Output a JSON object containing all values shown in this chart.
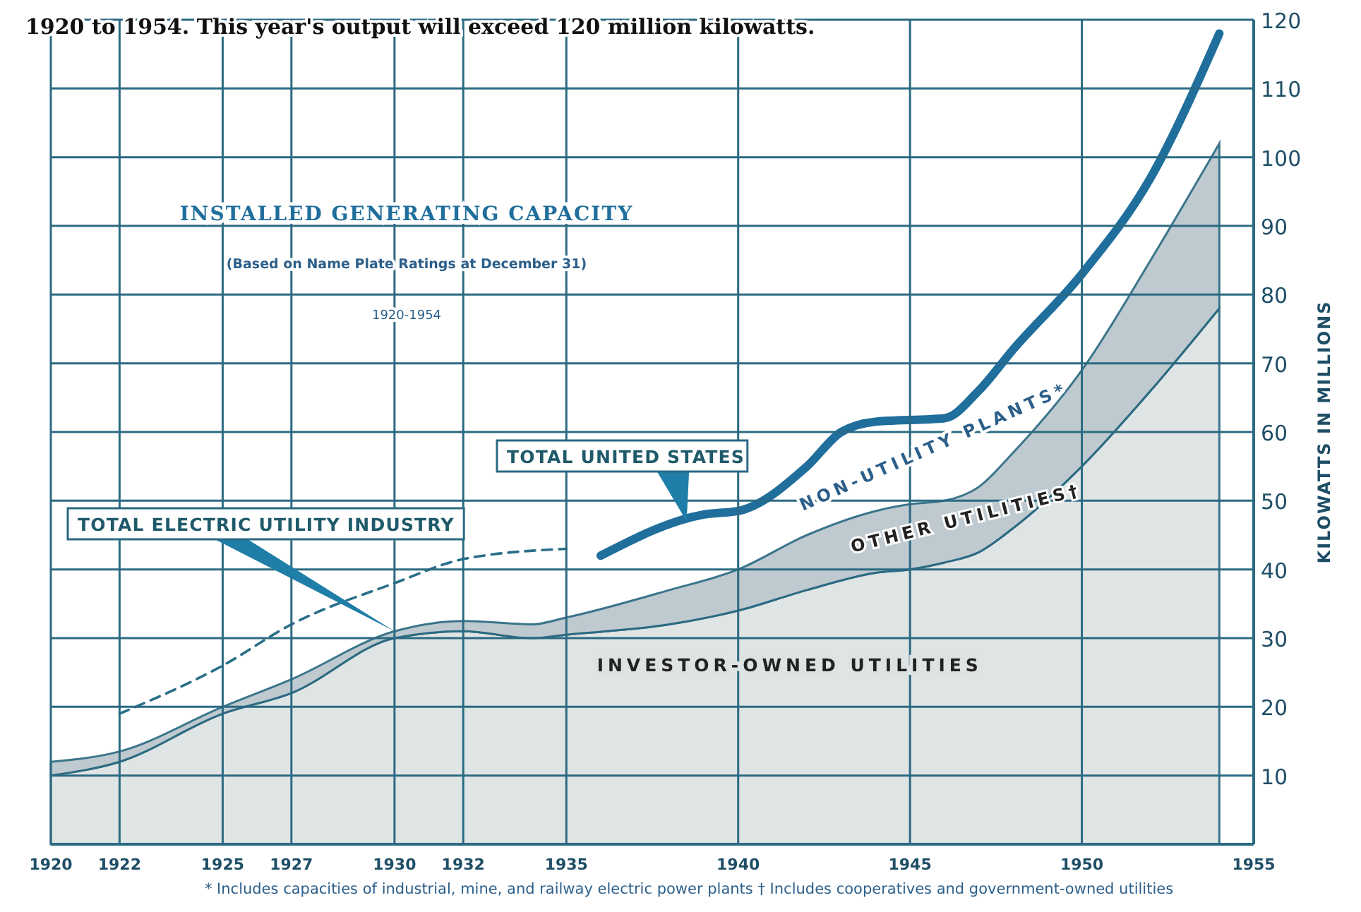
{
  "chart_data": {
    "type": "area",
    "stacked": true,
    "title": "INSTALLED GENERATING CAPACITY",
    "subtitle": "(Based on Name Plate Ratings at December 31)",
    "ylabel": "KILOWATTS IN MILLIONS",
    "x": [
      1920,
      1922,
      1925,
      1927,
      1930,
      1932,
      1934,
      1935,
      1938,
      1940,
      1942,
      1944,
      1945,
      1946,
      1947,
      1948,
      1950,
      1952,
      1954
    ],
    "series": [
      {
        "name": "INVESTOR-OWNED UTILITIES",
        "color": "#dde2e2",
        "values": [
          10,
          12,
          19,
          22,
          30,
          31,
          30,
          30.5,
          32,
          34,
          37,
          39.5,
          40,
          41,
          42.5,
          46,
          55,
          66,
          78
        ]
      },
      {
        "name": "OTHER UTILITIES†",
        "color": "#b9c6cc",
        "values": [
          2,
          1.5,
          1,
          2,
          1,
          1.5,
          2,
          2.5,
          5,
          6,
          8,
          9,
          9.5,
          9,
          9.5,
          11,
          14,
          19,
          24
        ]
      },
      {
        "type": "line",
        "line_style": "dashed",
        "color": "#2a6f8a",
        "x": [
          1922,
          1925,
          1927,
          1930,
          1932,
          1935
        ],
        "values": [
          19,
          26,
          32,
          38,
          41.5,
          43
        ]
      },
      {
        "type": "line",
        "line_style": "solid",
        "color": "#1f6e9c",
        "x": [
          1936,
          1939,
          1940,
          1942,
          1943,
          1944,
          1946,
          1947,
          1948,
          1950,
          1952,
          1954
        ],
        "values": [
          42,
          48,
          48.5,
          55,
          60,
          61.5,
          62,
          66,
          72,
          83,
          97,
          118
        ]
      }
    ],
    "xlim": [
      1920,
      1955
    ],
    "xticks": [
      1920,
      1922,
      1925,
      1927,
      1930,
      1932,
      1935,
      1940,
      1945,
      1950,
      1955
    ],
    "ylim": [
      0,
      120
    ],
    "yticks": [
      {
        "value": 0,
        "label": null
      },
      10,
      20,
      30,
      40,
      50,
      60,
      70,
      80,
      90,
      100,
      110,
      120
    ],
    "grid": true,
    "annotations": [
      "1920 to 1954. This year's output will exceed 120 million kilowatts.",
      "1920-1954",
      "TOTAL ELECTRIC UTILITY INDUSTRY",
      "TOTAL UNITED STATES",
      "NON-UTILITY PLANTS*",
      "* Includes capacities of industrial, mine, and railway electric power plants   † Includes cooperatives and government-owned utilities"
    ]
  }
}
